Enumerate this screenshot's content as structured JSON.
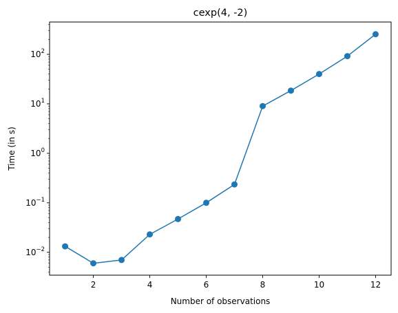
{
  "chart_data": {
    "type": "line",
    "title": "cexp(4, -2)",
    "xlabel": "Number of observations",
    "ylabel": "Time (in s)",
    "x": [
      1,
      2,
      3,
      4,
      5,
      6,
      7,
      8,
      9,
      10,
      11,
      12
    ],
    "series": [
      {
        "values": [
          0.0132,
          0.006,
          0.007,
          0.023,
          0.047,
          0.1,
          0.235,
          9.0,
          18.5,
          40.0,
          92.0,
          255.0
        ],
        "color": "#1f77b4",
        "marker": "circle"
      }
    ],
    "xlim": [
      0.45,
      12.55
    ],
    "ylim": [
      0.00345,
      450
    ],
    "yscale": "log",
    "xticks": [
      2,
      4,
      6,
      8,
      10,
      12
    ],
    "xtick_labels": [
      "2",
      "4",
      "6",
      "8",
      "10",
      "12"
    ],
    "yticks": [
      0.01,
      0.1,
      1,
      10,
      100
    ],
    "ytick_labels": [
      {
        "base": "10",
        "exp": "−2"
      },
      {
        "base": "10",
        "exp": "−1"
      },
      {
        "base": "10",
        "exp": "0"
      },
      {
        "base": "10",
        "exp": "1"
      },
      {
        "base": "10",
        "exp": "2"
      }
    ],
    "grid": false,
    "legend": false
  }
}
